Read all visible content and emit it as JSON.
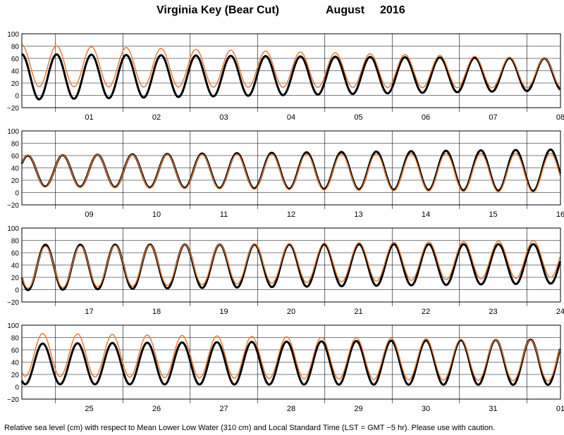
{
  "title": {
    "station": "Virginia Key (Bear Cut)",
    "month": "August",
    "year": "2016"
  },
  "footnote": "Relative sea level (cm) with respect to Mean Lower Low Water (310 cm) and Local Standard Time (LST = GMT −5 hr). Please use with caution.",
  "colors": {
    "observed": "#000000",
    "predicted": "#e8742a",
    "grid": "#000000"
  },
  "chart_data": [
    {
      "type": "line",
      "ylim": [
        -20,
        100
      ],
      "yticks": [
        "100",
        "80",
        "60",
        "40",
        "20",
        "0",
        "−20"
      ],
      "day_labels": [
        "01",
        "02",
        "03",
        "04",
        "05",
        "06",
        "07",
        "08"
      ],
      "series": [
        {
          "amp": 37,
          "mid": 30,
          "amp_end": 26,
          "mid_end": 34,
          "phase": 1.6
        },
        {
          "amp": 34,
          "mid": 48,
          "amp_end": 24,
          "mid_end": 36,
          "phase": 1.6
        }
      ]
    },
    {
      "type": "line",
      "ylim": [
        -20,
        100
      ],
      "yticks": [
        "100",
        "80",
        "60",
        "40",
        "20",
        "0",
        "−20"
      ],
      "day_labels": [
        "09",
        "10",
        "11",
        "12",
        "13",
        "14",
        "15",
        "16"
      ],
      "series": [
        {
          "amp": 25,
          "mid": 35,
          "amp_end": 34,
          "mid_end": 36,
          "phase": 0.5
        },
        {
          "amp": 26,
          "mid": 35,
          "amp_end": 32,
          "mid_end": 32,
          "phase": 0.5
        }
      ]
    },
    {
      "type": "line",
      "ylim": [
        -20,
        100
      ],
      "yticks": [
        "100",
        "80",
        "60",
        "40",
        "20",
        "0",
        "−20"
      ],
      "day_labels": [
        "17",
        "18",
        "19",
        "20",
        "21",
        "22",
        "23",
        "24"
      ],
      "series": [
        {
          "amp": 37,
          "mid": 36,
          "amp_end": 32,
          "mid_end": 42,
          "phase": 3.6
        },
        {
          "amp": 34,
          "mid": 36,
          "amp_end": 30,
          "mid_end": 50,
          "phase": 3.6
        }
      ]
    },
    {
      "type": "line",
      "ylim": [
        -20,
        100
      ],
      "yticks": [
        "100",
        "80",
        "60",
        "40",
        "20",
        "0",
        "−20"
      ],
      "day_labels": [
        "25",
        "26",
        "27",
        "28",
        "29",
        "30",
        "31",
        "01"
      ],
      "series": [
        {
          "amp": 33,
          "mid": 37,
          "amp_end": 37,
          "mid_end": 40,
          "phase": 4.1
        },
        {
          "amp": 35,
          "mid": 52,
          "amp_end": 33,
          "mid_end": 42,
          "phase": 4.1
        }
      ]
    }
  ]
}
